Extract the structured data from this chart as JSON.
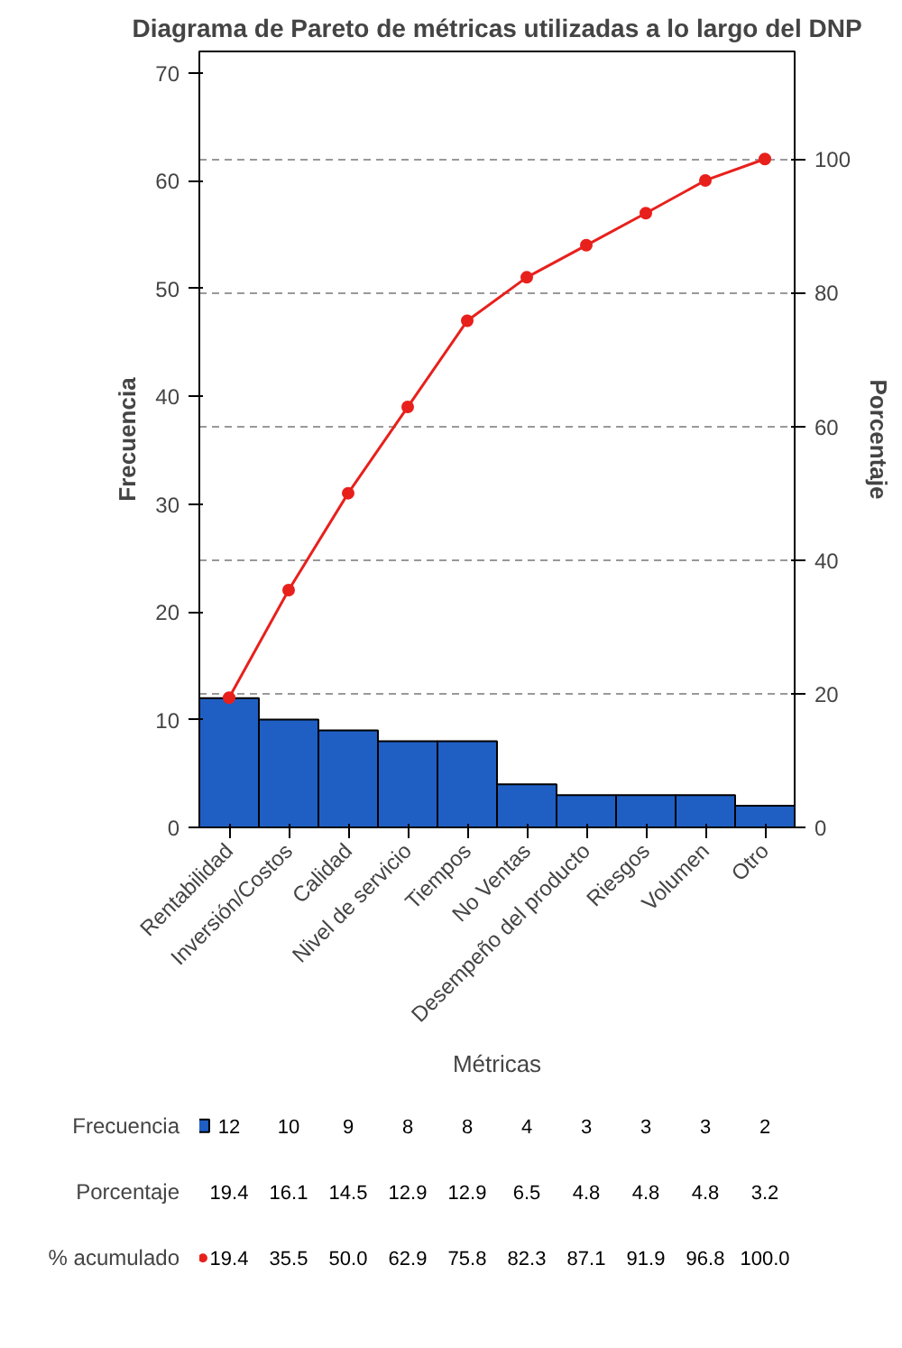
{
  "chart_data": {
    "type": "bar",
    "title": "Diagrama de Pareto de métricas utilizadas a lo largo del DNP",
    "xlabel": "Métricas",
    "ylabel": "Frecuencia",
    "y2label": "Porcentaje",
    "categories": [
      "Rentabilidad",
      "Inversión/Costos",
      "Calidad",
      "Nivel de servicio",
      "Tiempos",
      "No Ventas",
      "Desempeño del producto",
      "Riesgos",
      "Volumen",
      "Otro"
    ],
    "series": [
      {
        "name": "Frecuencia",
        "color": "#1f5fc4",
        "values": [
          12,
          10,
          9,
          8,
          8,
          4,
          3,
          3,
          3,
          2
        ],
        "value_labels": [
          "12",
          "10",
          "9",
          "8",
          "8",
          "4",
          "3",
          "3",
          "3",
          "2"
        ]
      },
      {
        "name": "% acumulado",
        "type": "line",
        "axis": "y2",
        "color": "#e8201c",
        "values": [
          19.4,
          35.5,
          50.0,
          62.9,
          75.8,
          82.3,
          87.1,
          91.9,
          96.8,
          100.0
        ],
        "value_labels": [
          "19.4",
          "35.5",
          "50.0",
          "62.9",
          "75.8",
          "82.3",
          "87.1",
          "91.9",
          "96.8",
          "100.0"
        ]
      }
    ],
    "ylim": [
      0,
      72
    ],
    "yticks": [
      0,
      10,
      20,
      30,
      40,
      50,
      60,
      70
    ],
    "y2lim": [
      0,
      116.1
    ],
    "y2ticks": [
      0,
      20,
      40,
      60,
      80,
      100
    ],
    "grid": "y2",
    "legend": "bottom left",
    "marker": "circle",
    "line_style": "solid",
    "annotations": [
      "Porcentaje",
      "19.4",
      "16.1",
      "14.5",
      "12.9",
      "12.9",
      "6.5",
      "4.8",
      "4.8",
      "4.8",
      "3.2"
    ]
  }
}
